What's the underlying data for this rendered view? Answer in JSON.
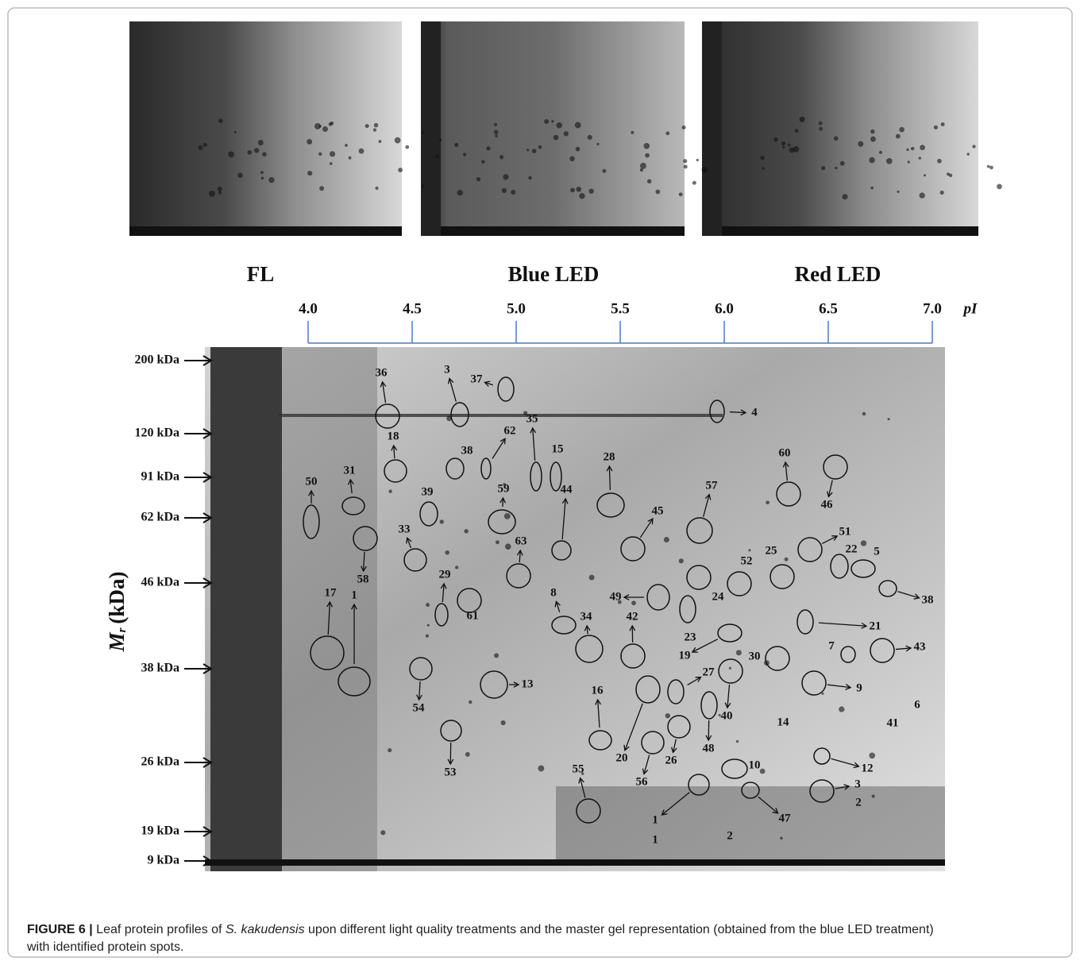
{
  "panels": [
    "FL",
    "Blue LED",
    "Red LED"
  ],
  "pi_axis": {
    "ticks": [
      "4.0",
      "4.5",
      "5.0",
      "5.5",
      "6.0",
      "6.5",
      "7.0"
    ],
    "label": "pI"
  },
  "mr_axis": {
    "title": {
      "symbol": "M",
      "subscript": "r",
      "unit": "(kDa)"
    },
    "ticks": [
      "200 kDa",
      "120 kDa",
      "91 kDa",
      "62 kDa",
      "46 kDa",
      "38 kDa",
      "26 kDa",
      "19 kDa",
      "9 kDa"
    ]
  },
  "spots": [
    "36",
    "3",
    "37",
    "35",
    "15",
    "62",
    "18",
    "38",
    "28",
    "60",
    "46",
    "50",
    "31",
    "39",
    "59",
    "44",
    "45",
    "57",
    "58",
    "33",
    "63",
    "51",
    "22",
    "5",
    "25",
    "52",
    "49",
    "24",
    "38",
    "17",
    "1",
    "29",
    "61",
    "8",
    "34",
    "42",
    "23",
    "21",
    "19",
    "30",
    "7",
    "43",
    "27",
    "13",
    "54",
    "9",
    "16",
    "14",
    "40",
    "41",
    "6",
    "20",
    "26",
    "48",
    "56",
    "53",
    "10",
    "12",
    "55",
    "3",
    "2",
    "47",
    "1",
    "1",
    "2",
    "4"
  ],
  "caption": {
    "figure": "FIGURE 6 |",
    "text_1": "Leaf protein profiles of",
    "species": "S. kakudensis",
    "text_2": "upon different light quality treatments and the master gel representation (obtained from the blue LED treatment)",
    "text_3": "with identified protein spots."
  }
}
